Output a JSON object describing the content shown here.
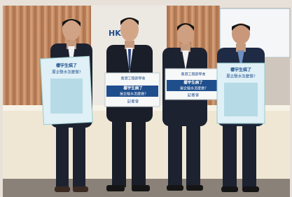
{
  "logo": "HK",
  "signs": [
    {
      "title": "樓宇生病了",
      "subtitle": "屋企驗水怎麼做?"
    },
    {
      "org": "香港工程師學會",
      "title": "樓宇生病了",
      "subtitle": "屋企驗水怎麼做?",
      "footer": "記者會"
    },
    {
      "org": "香港工程師學會",
      "title": "樓宇生病了",
      "subtitle": "屋企驗水怎麼做?",
      "footer": "記者會"
    },
    {
      "title": "樓宇生病了",
      "subtitle": "屋企驗水怎麼做?"
    }
  ]
}
